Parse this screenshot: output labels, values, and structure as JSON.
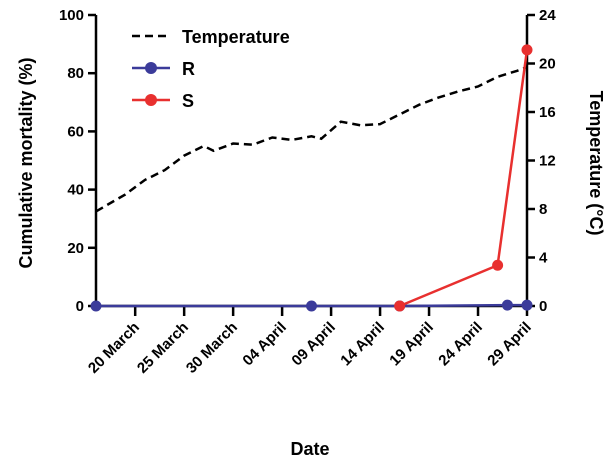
{
  "chart_data": {
    "type": "line",
    "xlabel": "Date",
    "ylabel_left": "Cumulative mortality (%)",
    "ylabel_right": "Temperature (°C)",
    "x_ticks": [
      "20 March",
      "25 March",
      "30 March",
      "04 April",
      "09 April",
      "14 April",
      "19 April",
      "24 April",
      "29 April"
    ],
    "xlim": [
      "16 March",
      "29 April"
    ],
    "ylim_left": [
      0,
      100
    ],
    "ylim_right": [
      0,
      24
    ],
    "y_ticks_left": [
      "0",
      "20",
      "40",
      "60",
      "80",
      "100"
    ],
    "y_ticks_right": [
      "0",
      "4",
      "8",
      "12",
      "16",
      "20",
      "24"
    ],
    "legend_position": "top-left",
    "grid": false,
    "series": [
      {
        "name": "Temperature",
        "axis": "right",
        "style": "dashed",
        "color": "#000000",
        "x": [
          "16 March",
          "19 March",
          "21 March",
          "23 March",
          "25 March",
          "27 March",
          "28 March",
          "30 March",
          "01 April",
          "03 April",
          "05 April",
          "07 April",
          "08 April",
          "10 April",
          "12 April",
          "14 April",
          "16 April",
          "18 April",
          "20 April",
          "22 April",
          "24 April",
          "26 April",
          "28 April",
          "29 April"
        ],
        "values": [
          7.8,
          9.2,
          10.4,
          11.2,
          12.4,
          13.2,
          12.8,
          13.4,
          13.3,
          13.9,
          13.7,
          14.0,
          13.8,
          15.2,
          14.9,
          15.0,
          15.8,
          16.6,
          17.2,
          17.7,
          18.1,
          18.9,
          19.4,
          19.7
        ]
      },
      {
        "name": "R",
        "axis": "left",
        "color": "#3B3B9A",
        "x": [
          "16 March",
          "07 April",
          "16 April",
          "27 April",
          "29 April"
        ],
        "values": [
          0,
          0,
          0,
          0.3,
          0.3
        ]
      },
      {
        "name": "S",
        "axis": "left",
        "color": "#E8302F",
        "x": [
          "16 April",
          "26 April",
          "29 April"
        ],
        "values": [
          0,
          14,
          88
        ]
      }
    ]
  }
}
